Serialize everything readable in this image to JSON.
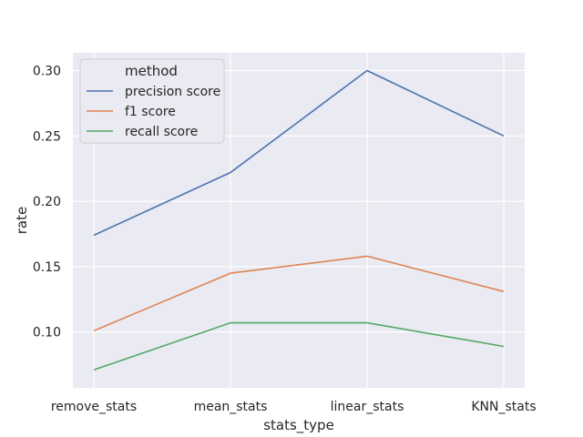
{
  "chart_data": {
    "type": "line",
    "categories": [
      "remove_stats",
      "mean_stats",
      "linear_stats",
      "KNN_stats"
    ],
    "series": [
      {
        "name": "precision score",
        "color": "#4c72b0",
        "values": [
          0.174,
          0.222,
          0.3,
          0.25
        ]
      },
      {
        "name": "f1 score",
        "color": "#dd8452",
        "values": [
          0.101,
          0.145,
          0.158,
          0.131
        ]
      },
      {
        "name": "recall score",
        "color": "#55a868",
        "values": [
          0.071,
          0.107,
          0.107,
          0.089
        ]
      }
    ],
    "title": "",
    "xlabel": "stats_type",
    "ylabel": "rate",
    "ylim": [
      0.0573,
      0.3136
    ],
    "yticks": [
      0.1,
      0.15,
      0.2,
      0.25,
      0.3
    ],
    "ytick_labels": [
      "0.10",
      "0.15",
      "0.20",
      "0.25",
      "0.30"
    ],
    "legend": {
      "title": "method",
      "placement": "top-left"
    },
    "grid": true,
    "background_color": "#eaeaf2",
    "grid_color": "#ffffff"
  }
}
